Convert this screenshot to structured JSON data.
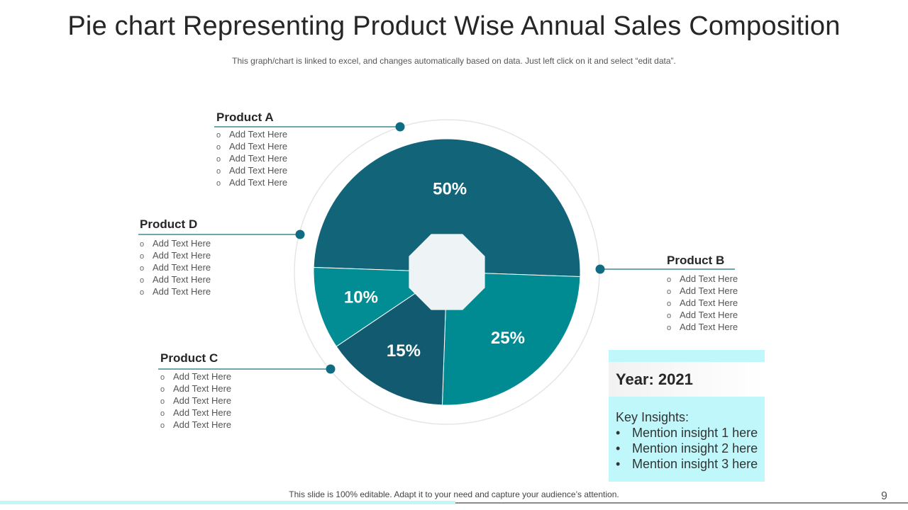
{
  "title": "Pie chart Representing Product Wise Annual Sales Composition",
  "subtitle": "This graph/chart is linked to excel, and changes automatically based on data. Just left click on it and select “edit data”.",
  "chart_data": {
    "type": "pie",
    "categories": [
      "Product B",
      "Product C",
      "Product D",
      "Product A"
    ],
    "values": [
      50,
      25,
      15,
      10
    ],
    "labels": [
      "50%",
      "25%",
      "15%",
      "10%"
    ],
    "colors": [
      "#126478",
      "#008b92",
      "#115a70",
      "#028c93"
    ]
  },
  "products": [
    {
      "name": "Product A",
      "items": [
        "Add Text Here",
        "Add Text Here",
        "Add Text Here",
        "Add Text Here",
        "Add Text Here"
      ]
    },
    {
      "name": "Product D",
      "items": [
        "Add Text Here",
        "Add Text Here",
        "Add Text Here",
        "Add Text Here",
        "Add Text Here"
      ]
    },
    {
      "name": "Product B",
      "items": [
        "Add Text Here",
        "Add Text Here",
        "Add Text Here",
        "Add Text Here",
        "Add Text Here"
      ]
    },
    {
      "name": "Product C",
      "items": [
        "Add Text Here",
        "Add Text Here",
        "Add Text Here",
        "Add Text Here",
        "Add Text Here"
      ]
    }
  ],
  "insights": {
    "year": "Year: 2021",
    "title": "Key Insights:",
    "items": [
      "Mention insight 1 here",
      "Mention insight 2  here",
      "Mention insight 3 here"
    ]
  },
  "footer": "This slide is 100% editable. Adapt it to your need and capture your audience’s attention.",
  "page_number": "9",
  "colors": {
    "accent": "#0e6e82",
    "insight_bg": "#bff7fa"
  }
}
